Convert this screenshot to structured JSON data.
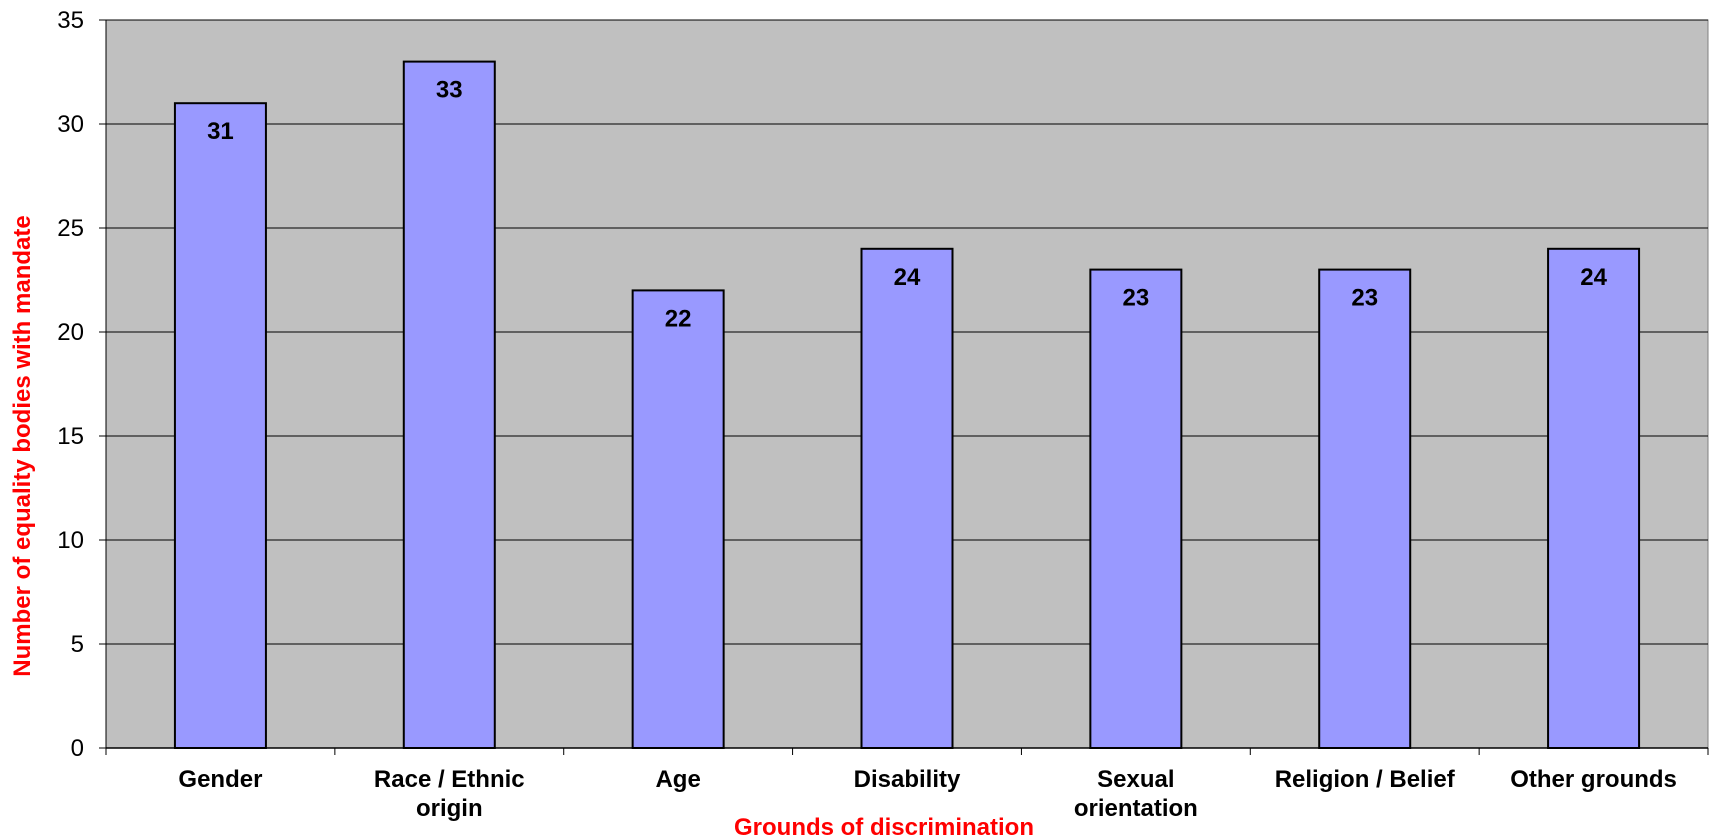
{
  "chart_data": {
    "type": "bar",
    "title": "",
    "xlabel": "Grounds of discrimination",
    "ylabel": "Number of equality bodies with mandate",
    "categories": [
      [
        "Gender"
      ],
      [
        "Race / Ethnic",
        "origin"
      ],
      [
        "Age"
      ],
      [
        "Disability"
      ],
      [
        "Sexual",
        "orientation"
      ],
      [
        "Religion / Belief"
      ],
      [
        "Other grounds"
      ]
    ],
    "values": [
      31,
      33,
      22,
      24,
      23,
      23,
      24
    ],
    "ylim": [
      0,
      35
    ],
    "yticks": [
      0,
      5,
      10,
      15,
      20,
      25,
      30,
      35
    ],
    "grid": true,
    "legend": "none",
    "colors": {
      "bar": "#9999ff",
      "bar_border": "#000000",
      "plot_background": "#c0c0c0",
      "gridline": "#000000",
      "axis_title": "#ff0000"
    }
  }
}
